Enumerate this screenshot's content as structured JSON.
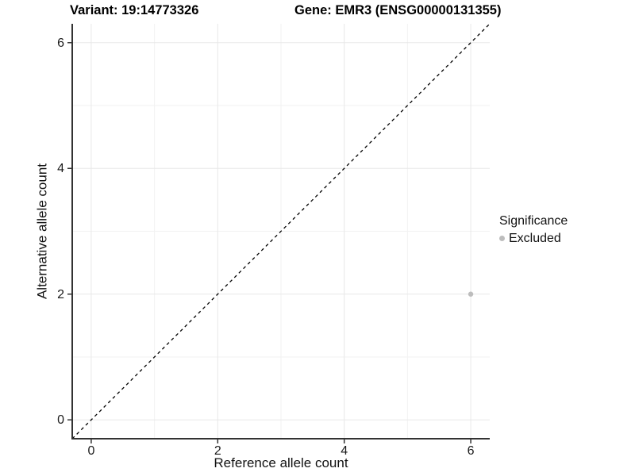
{
  "titles": {
    "variant": "Variant: 19:14773326",
    "gene": "Gene: EMR3 (ENSG00000131355)"
  },
  "legend": {
    "title": "Significance",
    "items": [
      {
        "label": "Excluded",
        "color": "#bdbdbd"
      }
    ]
  },
  "colors": {
    "background": "#ffffff",
    "axis_line": "#333333",
    "major_grid": "#e8e8e8",
    "minor_grid": "#f2f2f2",
    "tick": "#333333",
    "identity_line": "#000000",
    "point": "#bdbdbd"
  },
  "chart_data": {
    "type": "scatter",
    "title": "Variant: 19:14773326    Gene: EMR3 (ENSG00000131355)",
    "xlabel": "Reference allele count",
    "ylabel": "Alternative allele count",
    "xlim": [
      -0.3,
      6.3
    ],
    "ylim": [
      -0.3,
      6.3
    ],
    "xticks": [
      0,
      2,
      4,
      6
    ],
    "yticks": [
      0,
      2,
      4,
      6
    ],
    "minor_grid_x": [
      1,
      3,
      5
    ],
    "minor_grid_y": [
      1,
      3,
      5
    ],
    "grid": true,
    "legend_position": "right",
    "legend_title": "Significance",
    "series": [
      {
        "name": "Excluded",
        "color": "#bdbdbd",
        "points": [
          {
            "x": 6,
            "y": 2
          }
        ]
      }
    ],
    "reference_line": {
      "kind": "identity",
      "slope": 1,
      "intercept": 0,
      "style": "dashed",
      "color": "#000000"
    }
  }
}
